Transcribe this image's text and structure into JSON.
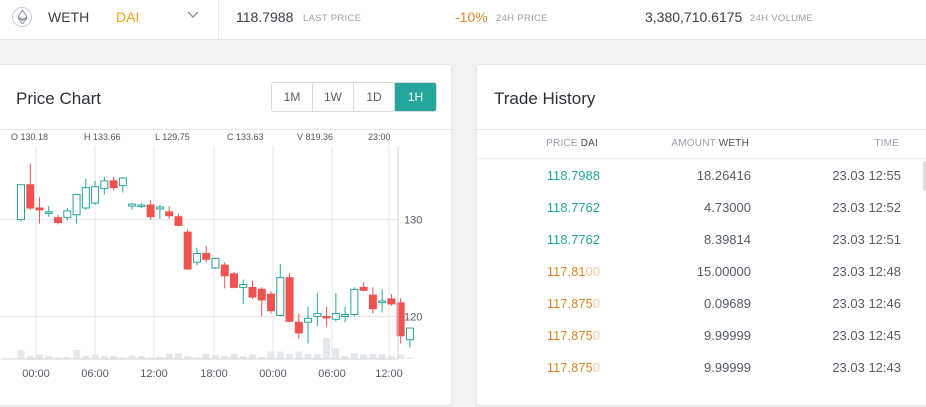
{
  "header": {
    "base": "WETH",
    "quote": "DAI",
    "last_price": "118.7988",
    "last_price_label": "LAST PRICE",
    "change": "-10%",
    "change_label": "24H PRICE",
    "volume": "3,380,710.6175",
    "volume_label": "24H VOLUME",
    "colors": {
      "quote": "#e8a317",
      "change": "#e0882d"
    }
  },
  "price_chart": {
    "title": "Price Chart",
    "timeframes": [
      "1M",
      "1W",
      "1D",
      "1H"
    ],
    "active_timeframe": "1H",
    "ohlcv": {
      "o_label": "O",
      "o": "130.18",
      "h_label": "H",
      "h": "133.66",
      "l_label": "L",
      "l": "129.75",
      "c_label": "C",
      "c": "133.63",
      "v_label": "V",
      "v": "819.36",
      "time": "23:00"
    },
    "colors": {
      "up": "#26a69a",
      "down": "#ef5350",
      "volume": "#e6e9ec"
    }
  },
  "chart_data": {
    "type": "candlestick",
    "y_ticks": [
      120,
      130
    ],
    "x_ticks": [
      "00:00",
      "06:00",
      "12:00",
      "18:00",
      "00:00",
      "06:00",
      "12:00"
    ],
    "ylim": [
      115.5,
      137.6
    ],
    "candles": [
      {
        "o": 130.0,
        "h": 133.5,
        "l": 129.8,
        "c": 133.6
      },
      {
        "o": 133.6,
        "h": 135.8,
        "l": 131.0,
        "c": 131.2
      },
      {
        "o": 131.2,
        "h": 132.3,
        "l": 129.6,
        "c": 131.0
      },
      {
        "o": 130.8,
        "h": 131.4,
        "l": 130.3,
        "c": 130.8
      },
      {
        "o": 130.2,
        "h": 130.5,
        "l": 129.5,
        "c": 129.7
      },
      {
        "o": 130.2,
        "h": 131.2,
        "l": 129.9,
        "c": 130.9
      },
      {
        "o": 130.5,
        "h": 132.5,
        "l": 129.6,
        "c": 132.6
      },
      {
        "o": 131.2,
        "h": 134.2,
        "l": 131.0,
        "c": 133.3
      },
      {
        "o": 131.7,
        "h": 134.0,
        "l": 131.5,
        "c": 133.4
      },
      {
        "o": 133.2,
        "h": 134.4,
        "l": 132.6,
        "c": 134.0
      },
      {
        "o": 134.0,
        "h": 134.4,
        "l": 133.0,
        "c": 133.3
      },
      {
        "o": 133.5,
        "h": 134.4,
        "l": 132.8,
        "c": 134.3
      },
      {
        "o": 131.4,
        "h": 131.7,
        "l": 131.0,
        "c": 131.6
      },
      {
        "o": 131.5,
        "h": 131.7,
        "l": 131.2,
        "c": 131.5
      },
      {
        "o": 131.5,
        "h": 132.0,
        "l": 130.0,
        "c": 130.3
      },
      {
        "o": 131.1,
        "h": 131.5,
        "l": 130.1,
        "c": 131.3
      },
      {
        "o": 130.8,
        "h": 131.4,
        "l": 130.1,
        "c": 130.4
      },
      {
        "o": 130.3,
        "h": 130.6,
        "l": 129.3,
        "c": 129.4
      },
      {
        "o": 128.7,
        "h": 129.0,
        "l": 124.8,
        "c": 124.9
      },
      {
        "o": 125.6,
        "h": 127.1,
        "l": 125.3,
        "c": 126.5
      },
      {
        "o": 126.5,
        "h": 127.3,
        "l": 125.6,
        "c": 125.9
      },
      {
        "o": 125.0,
        "h": 126.0,
        "l": 124.9,
        "c": 126.0
      },
      {
        "o": 125.3,
        "h": 125.6,
        "l": 122.9,
        "c": 124.2
      },
      {
        "o": 124.4,
        "h": 124.6,
        "l": 122.9,
        "c": 123.0
      },
      {
        "o": 123.0,
        "h": 123.8,
        "l": 121.3,
        "c": 123.3
      },
      {
        "o": 123.0,
        "h": 123.7,
        "l": 121.8,
        "c": 122.0
      },
      {
        "o": 122.8,
        "h": 123.0,
        "l": 120.0,
        "c": 121.7
      },
      {
        "o": 122.3,
        "h": 122.6,
        "l": 120.3,
        "c": 120.6
      },
      {
        "o": 120.1,
        "h": 125.4,
        "l": 120.0,
        "c": 124.0
      },
      {
        "o": 124.0,
        "h": 124.5,
        "l": 119.4,
        "c": 119.5
      },
      {
        "o": 119.4,
        "h": 120.3,
        "l": 117.7,
        "c": 118.3
      },
      {
        "o": 119.4,
        "h": 121.0,
        "l": 117.2,
        "c": 119.8
      },
      {
        "o": 120.0,
        "h": 122.4,
        "l": 119.0,
        "c": 120.3
      },
      {
        "o": 120.0,
        "h": 121.0,
        "l": 118.9,
        "c": 119.9
      },
      {
        "o": 119.7,
        "h": 122.4,
        "l": 119.5,
        "c": 120.3
      },
      {
        "o": 120.0,
        "h": 121.0,
        "l": 119.4,
        "c": 120.2
      },
      {
        "o": 120.2,
        "h": 123.0,
        "l": 120.0,
        "c": 122.8
      },
      {
        "o": 123.0,
        "h": 123.5,
        "l": 122.6,
        "c": 122.7
      },
      {
        "o": 122.2,
        "h": 123.0,
        "l": 120.3,
        "c": 120.8
      },
      {
        "o": 121.5,
        "h": 122.8,
        "l": 120.4,
        "c": 121.6
      },
      {
        "o": 121.8,
        "h": 122.3,
        "l": 121.1,
        "c": 121.3
      },
      {
        "o": 121.4,
        "h": 121.9,
        "l": 117.2,
        "c": 118.0
      },
      {
        "o": 117.6,
        "h": 118.8,
        "l": 116.8,
        "c": 118.8
      }
    ],
    "volume": [
      0.3,
      0.1,
      0.15,
      0.1,
      0.05,
      0.08,
      0.3,
      0.1,
      0.15,
      0.1,
      0.1,
      0.05,
      0.12,
      0.1,
      0.05,
      0.08,
      0.18,
      0.2,
      0.1,
      0.05,
      0.18,
      0.14,
      0.1,
      0.18,
      0.1,
      0.15,
      0.07,
      0.25,
      0.25,
      0.18,
      0.25,
      0.18,
      0.16,
      0.7,
      0.35,
      0.1,
      0.2,
      0.15,
      0.18,
      0.16,
      0.1,
      0.15,
      0.05
    ]
  },
  "trade_history": {
    "title": "Trade History",
    "col_price": "PRICE",
    "col_price_unit": "DAI",
    "col_amount": "AMOUNT",
    "col_amount_unit": "WETH",
    "col_time": "TIME",
    "rows": [
      {
        "price_main": "118.7988",
        "price_fade": "",
        "amount": "18.26416",
        "time": "23.03 12:55",
        "side": "buy"
      },
      {
        "price_main": "118.7762",
        "price_fade": "",
        "amount": "4.73000",
        "time": "23.03 12:52",
        "side": "buy"
      },
      {
        "price_main": "118.7762",
        "price_fade": "",
        "amount": "8.39814",
        "time": "23.03 12:51",
        "side": "buy"
      },
      {
        "price_main": "117.81",
        "price_fade": "00",
        "amount": "15.00000",
        "time": "23.03 12:48",
        "side": "sell"
      },
      {
        "price_main": "117.875",
        "price_fade": "0",
        "amount": "0.09689",
        "time": "23.03 12:46",
        "side": "sell"
      },
      {
        "price_main": "117.875",
        "price_fade": "0",
        "amount": "9.99999",
        "time": "23.03 12:45",
        "side": "sell"
      },
      {
        "price_main": "117.875",
        "price_fade": "0",
        "amount": "9.99999",
        "time": "23.03 12:43",
        "side": "sell"
      }
    ]
  }
}
